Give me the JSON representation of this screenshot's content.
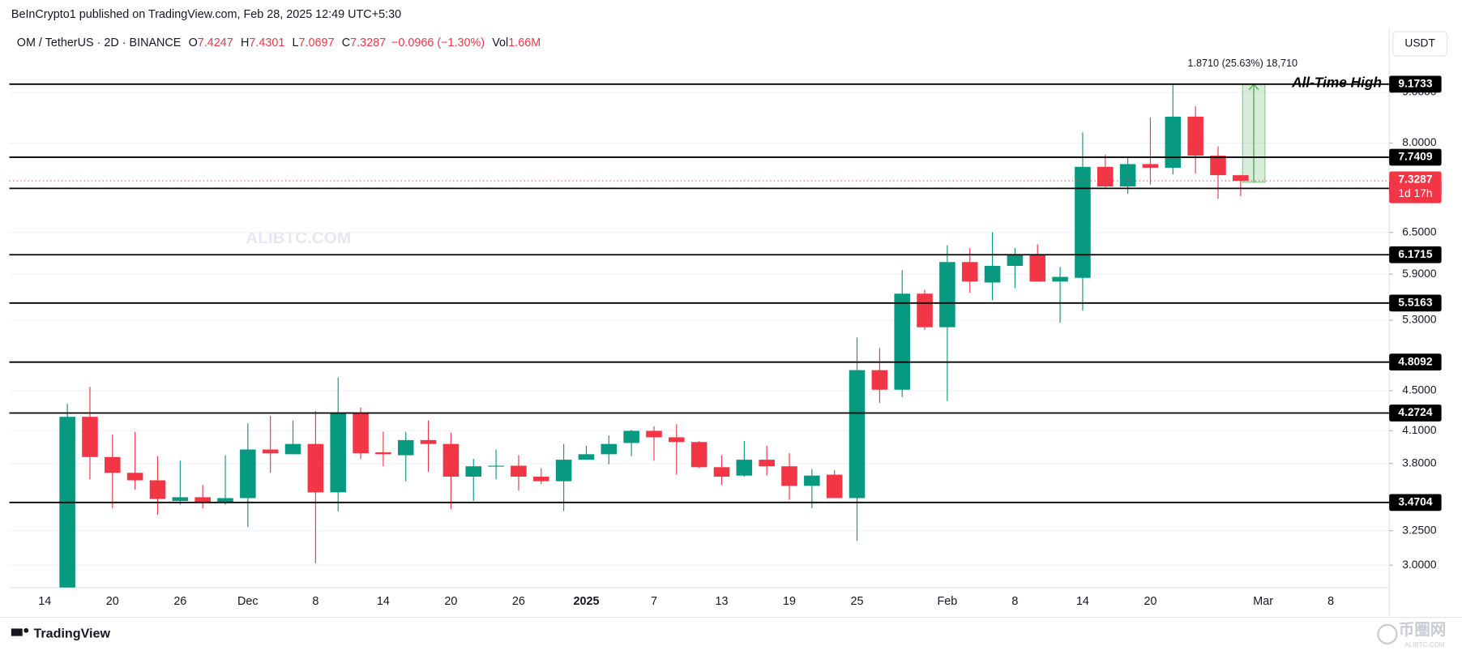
{
  "chart_data": {
    "type": "candlestick",
    "header": "BeInCrypto1 published on TradingView.com, Feb 28, 2025 12:49 UTC+5:30",
    "symbol": "OM / TetherUS · 2D · BINANCE",
    "ohlc_letters": [
      "O",
      "H",
      "L",
      "C"
    ],
    "change": "−0.0966 (−1.30%)",
    "volume_letter": "Vol",
    "volume": "1.66M",
    "currency": "USDT",
    "categories": [
      "14",
      null,
      null,
      "20",
      null,
      null,
      "26",
      null,
      null,
      "Dec",
      null,
      null,
      "8",
      null,
      null,
      "14",
      null,
      null,
      "20",
      null,
      null,
      "26",
      null,
      null,
      "2025",
      null,
      null,
      "7",
      null,
      null,
      "13",
      null,
      null,
      "19",
      null,
      null,
      "25",
      null,
      null,
      null,
      "Feb",
      null,
      null,
      "8",
      null,
      null,
      "14",
      null,
      null,
      "20",
      null,
      null,
      null,
      null,
      "Mar",
      null,
      null,
      "8",
      null,
      null
    ],
    "open": [
      null,
      2.75,
      4.235,
      3.857,
      3.718,
      3.654,
      3.483,
      3.513,
      3.476,
      3.506,
      3.925,
      3.882,
      3.976,
      3.553,
      4.272,
      3.899,
      3.873,
      4.012,
      3.976,
      3.685,
      3.775,
      3.78,
      3.685,
      3.646,
      3.833,
      3.882,
      3.985,
      4.099,
      4.038,
      3.994,
      3.767,
      3.694,
      3.833,
      3.775,
      3.607,
      3.702,
      3.506,
      4.72,
      4.51,
      5.638,
      5.215,
      6.068,
      5.786,
      6.014,
      6.163,
      5.799,
      5.849,
      7.57,
      7.233,
      7.619,
      7.554,
      8.507,
      7.77,
      7.4247,
      null,
      null,
      null,
      null,
      null,
      null
    ],
    "high": [
      null,
      4.365,
      4.539,
      4.064,
      4.09,
      3.865,
      3.825,
      3.615,
      3.873,
      4.171,
      4.244,
      4.199,
      4.291,
      4.638,
      4.328,
      4.09,
      4.09,
      4.199,
      4.081,
      3.841,
      3.925,
      3.873,
      3.759,
      3.976,
      3.959,
      4.055,
      4.108,
      4.144,
      4.162,
      4.003,
      3.873,
      4.003,
      3.959,
      3.891,
      3.751,
      3.743,
      5.092,
      4.97,
      5.953,
      5.688,
      6.309,
      6.267,
      6.505,
      6.267,
      6.323,
      6.001,
      8.201,
      7.786,
      7.752,
      8.489,
      9.173,
      8.715,
      7.94,
      7.4301,
      null,
      null,
      null,
      null,
      null,
      null
    ],
    "low": [
      null,
      2.62,
      3.662,
      3.424,
      3.576,
      3.373,
      3.453,
      3.424,
      3.453,
      3.279,
      3.718,
      3.882,
      3.013,
      3.401,
      3.841,
      3.775,
      3.646,
      3.726,
      3.417,
      3.483,
      3.662,
      3.569,
      3.623,
      3.401,
      3.841,
      3.792,
      3.865,
      3.825,
      3.702,
      3.759,
      3.615,
      3.685,
      3.694,
      3.491,
      3.424,
      3.506,
      3.174,
      4.375,
      4.432,
      5.181,
      4.394,
      5.651,
      5.552,
      5.713,
      5.799,
      5.271,
      5.42,
      7.217,
      7.108,
      7.264,
      7.437,
      7.453,
      7.028,
      7.0697,
      null,
      null,
      null,
      null,
      null,
      null
    ],
    "close": [
      null,
      4.235,
      3.857,
      3.718,
      3.654,
      3.499,
      3.513,
      3.476,
      3.506,
      3.925,
      3.891,
      3.976,
      3.553,
      4.272,
      3.891,
      3.882,
      4.012,
      3.976,
      3.685,
      3.775,
      3.78,
      3.685,
      3.646,
      3.833,
      3.882,
      3.976,
      4.099,
      4.038,
      3.994,
      3.767,
      3.685,
      3.833,
      3.775,
      3.607,
      3.694,
      3.506,
      4.72,
      4.51,
      5.638,
      5.215,
      6.068,
      5.799,
      6.014,
      6.163,
      5.799,
      5.862,
      7.57,
      7.233,
      7.619,
      7.554,
      8.507,
      7.77,
      7.425,
      7.3287,
      null,
      null,
      null,
      null,
      null,
      null
    ],
    "up_color": "#089981",
    "down_color": "#f23645",
    "ylim": [
      2.848,
      9.753
    ],
    "log_scale": true,
    "yticks": [
      {
        "value": 3,
        "label": "3.0000"
      },
      {
        "value": 3.25,
        "label": "3.2500"
      },
      {
        "value": 3.8,
        "label": "3.8000"
      },
      {
        "value": 4.1,
        "label": "4.1000"
      },
      {
        "value": 4.5,
        "label": "4.5000"
      },
      {
        "value": 5.3,
        "label": "5.3000"
      },
      {
        "value": 5.9,
        "label": "5.9000"
      },
      {
        "value": 6.5,
        "label": "6.5000"
      },
      {
        "value": 8,
        "label": "8.0000"
      },
      {
        "value": 9,
        "label": "9.0000"
      }
    ],
    "grid": true,
    "levels": [
      9.1733,
      7.7409,
      7.2008,
      6.1715,
      5.5163,
      4.8092,
      4.2724,
      3.4704
    ],
    "level_color": "#000000",
    "annotation": "All-Time High",
    "measure": {
      "from": 7.3023,
      "to": 9.1733,
      "label": "1.8710 (25.63%) 18,710",
      "color": "#4caf50"
    },
    "countdown": "1d 17h",
    "watermark": "ALIBTC.COM",
    "footer": "TradingView",
    "corner_logo": "币圈网",
    "corner_site": "ALIBTC.COM"
  }
}
